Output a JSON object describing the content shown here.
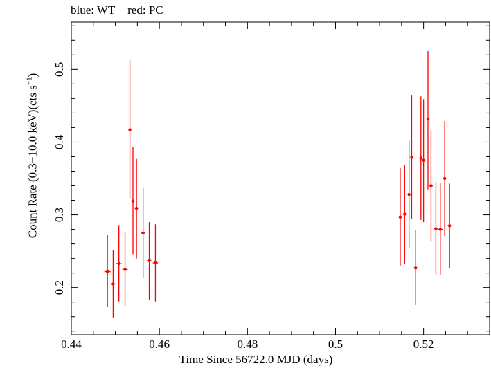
{
  "chart_data": {
    "type": "scatter",
    "title": "blue: WT − red: PC",
    "xlabel": "Time Since 56722.0 MJD (days)",
    "ylabel_main": "Count Rate (0.3−10.0 keV)(cts s",
    "ylabel_sup": "−1",
    "ylabel_end": ")",
    "xlim": [
      0.44,
      0.535
    ],
    "ylim": [
      0.135,
      0.565
    ],
    "x_ticks": [
      0.44,
      0.46,
      0.48,
      0.5,
      0.52
    ],
    "x_tick_labels": [
      "0.44",
      "0.46",
      "0.48",
      "0.5",
      "0.52"
    ],
    "y_ticks": [
      0.2,
      0.3,
      0.4,
      0.5
    ],
    "y_tick_labels": [
      "0.2",
      "0.3",
      "0.4",
      "0.5"
    ],
    "grid": false,
    "series": [
      {
        "color": "#ff0000",
        "points": [
          {
            "x": 0.4482,
            "y": 0.222,
            "xerr": 0.0007,
            "ylo": 0.173,
            "yhi": 0.272
          },
          {
            "x": 0.4495,
            "y": 0.205,
            "xerr": 0.0006,
            "ylo": 0.159,
            "yhi": 0.251
          },
          {
            "x": 0.4508,
            "y": 0.233,
            "xerr": 0.0006,
            "ylo": 0.181,
            "yhi": 0.286
          },
          {
            "x": 0.4522,
            "y": 0.225,
            "xerr": 0.0006,
            "ylo": 0.174,
            "yhi": 0.276
          },
          {
            "x": 0.4533,
            "y": 0.417,
            "xerr": 0.0003,
            "ylo": 0.323,
            "yhi": 0.513
          },
          {
            "x": 0.454,
            "y": 0.319,
            "xerr": 0.0004,
            "ylo": 0.246,
            "yhi": 0.393
          },
          {
            "x": 0.4548,
            "y": 0.309,
            "xerr": 0.0004,
            "ylo": 0.24,
            "yhi": 0.377
          },
          {
            "x": 0.4563,
            "y": 0.275,
            "xerr": 0.0005,
            "ylo": 0.213,
            "yhi": 0.337
          },
          {
            "x": 0.4577,
            "y": 0.237,
            "xerr": 0.0005,
            "ylo": 0.183,
            "yhi": 0.29
          },
          {
            "x": 0.4591,
            "y": 0.234,
            "xerr": 0.0006,
            "ylo": 0.181,
            "yhi": 0.287
          },
          {
            "x": 0.5147,
            "y": 0.297,
            "xerr": 0.0005,
            "ylo": 0.23,
            "yhi": 0.364
          },
          {
            "x": 0.5157,
            "y": 0.301,
            "xerr": 0.0005,
            "ylo": 0.233,
            "yhi": 0.369
          },
          {
            "x": 0.5167,
            "y": 0.328,
            "xerr": 0.0003,
            "ylo": 0.254,
            "yhi": 0.402
          },
          {
            "x": 0.5173,
            "y": 0.379,
            "xerr": 0.0003,
            "ylo": 0.294,
            "yhi": 0.464
          },
          {
            "x": 0.5182,
            "y": 0.227,
            "xerr": 0.0005,
            "ylo": 0.176,
            "yhi": 0.279
          },
          {
            "x": 0.5194,
            "y": 0.378,
            "xerr": 0.0003,
            "ylo": 0.293,
            "yhi": 0.463
          },
          {
            "x": 0.52,
            "y": 0.375,
            "xerr": 0.0004,
            "ylo": 0.29,
            "yhi": 0.459
          },
          {
            "x": 0.521,
            "y": 0.432,
            "xerr": 0.0003,
            "ylo": 0.335,
            "yhi": 0.525
          },
          {
            "x": 0.5217,
            "y": 0.34,
            "xerr": 0.0004,
            "ylo": 0.263,
            "yhi": 0.416
          },
          {
            "x": 0.5228,
            "y": 0.281,
            "xerr": 0.0005,
            "ylo": 0.218,
            "yhi": 0.345
          },
          {
            "x": 0.5238,
            "y": 0.28,
            "xerr": 0.0005,
            "ylo": 0.217,
            "yhi": 0.344
          },
          {
            "x": 0.5248,
            "y": 0.35,
            "xerr": 0.0003,
            "ylo": 0.271,
            "yhi": 0.429
          },
          {
            "x": 0.5259,
            "y": 0.285,
            "xerr": 0.0005,
            "ylo": 0.227,
            "yhi": 0.343
          }
        ]
      }
    ]
  }
}
